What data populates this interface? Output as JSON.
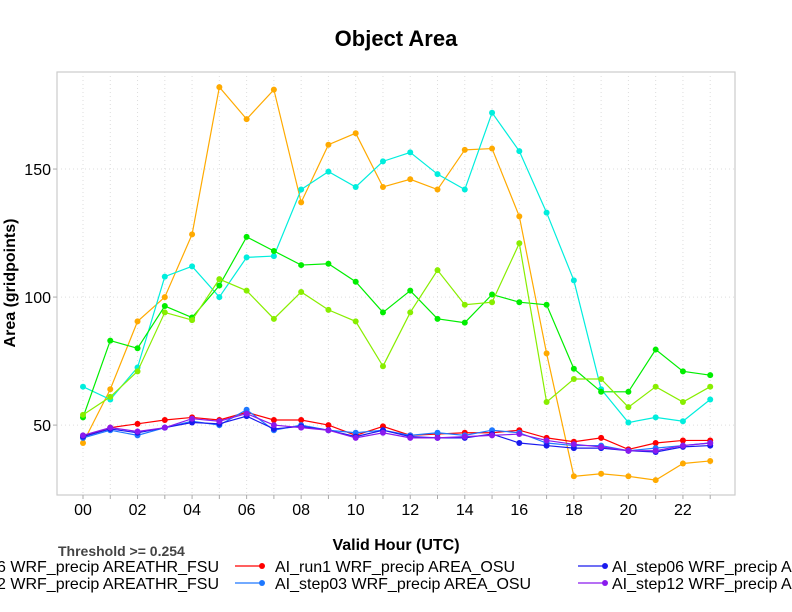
{
  "chart_data": {
    "type": "line",
    "title": "Object Area",
    "xlabel": "Valid Hour (UTC)",
    "ylabel": "Area (gridpoints)",
    "subtitle": "Threshold >= 0.254",
    "x": [
      0,
      1,
      2,
      3,
      4,
      5,
      6,
      7,
      8,
      9,
      10,
      11,
      12,
      13,
      14,
      15,
      16,
      17,
      18,
      19,
      20,
      21,
      22,
      23
    ],
    "xticks": [
      "00",
      "02",
      "04",
      "06",
      "08",
      "10",
      "12",
      "14",
      "16",
      "18",
      "20",
      "22"
    ],
    "xtick_values": [
      0,
      2,
      4,
      6,
      8,
      10,
      12,
      14,
      16,
      18,
      20,
      22
    ],
    "yticks": [
      "50",
      "100",
      "150"
    ],
    "ytick_values": [
      50,
      100,
      150
    ],
    "xlim": [
      -1,
      24
    ],
    "ylim": [
      22.7,
      187.9
    ],
    "grid": true,
    "legend_position": "bottom",
    "series": [
      {
        "name": "",
        "color": "#ffaa00",
        "values": [
          43,
          64,
          90.5,
          100,
          124.5,
          182,
          169.5,
          181,
          137,
          159.5,
          164,
          143,
          146,
          142,
          157.5,
          158,
          131.5,
          78,
          30,
          31,
          30,
          28.5,
          35,
          36
        ]
      },
      {
        "name": "",
        "color": "#00eedd",
        "values": [
          65,
          60,
          72.5,
          108,
          112,
          100,
          115.5,
          116,
          142,
          149,
          143,
          153,
          156.5,
          148,
          142,
          172,
          157,
          133,
          106.5,
          64,
          51,
          53,
          51.5,
          60
        ]
      },
      {
        "name": "",
        "color": "#00ee00",
        "values": [
          53,
          83,
          80,
          96.5,
          92,
          104.5,
          123.5,
          118,
          112.5,
          113,
          106,
          94,
          102.5,
          91.5,
          90,
          101,
          98,
          97,
          72,
          63,
          63,
          79.5,
          71,
          69.5
        ]
      },
      {
        "name": "",
        "color": "#88ee00",
        "values": [
          54,
          61,
          71,
          94,
          91,
          107,
          102.5,
          91.5,
          102,
          95,
          90.5,
          73,
          94,
          110.5,
          97,
          98,
          121,
          59,
          68,
          68,
          57,
          65,
          59,
          65
        ]
      },
      {
        "name": "AI_run1 WRF_precip AREA_OSU",
        "color": "#ff0000",
        "values": [
          45.5,
          49,
          50.5,
          52,
          53,
          52,
          55,
          52,
          52,
          50,
          46,
          49.5,
          46,
          46.5,
          47,
          47,
          48,
          45,
          43.5,
          45,
          40.5,
          43,
          44,
          44
        ]
      },
      {
        "name": "AI_step03 WRF_precip AREA_OSU",
        "color": "#1e78ff",
        "values": [
          45,
          48,
          46,
          49,
          51.5,
          50,
          56,
          48,
          50,
          48,
          47,
          48,
          46,
          47,
          46,
          48,
          47,
          43,
          42,
          42,
          40,
          41,
          42,
          43
        ]
      },
      {
        "name": "AI_step06 WRF_precip A",
        "color": "#1a1aee",
        "values": [
          45.5,
          48.5,
          47,
          49,
          51,
          50.5,
          53.5,
          48.5,
          49.5,
          48,
          45.5,
          48,
          45.5,
          45,
          45,
          46.5,
          43,
          42,
          41,
          41,
          40,
          39.5,
          41.5,
          42
        ]
      },
      {
        "name": "AI_step12 WRF_precip A",
        "color": "#8a1aee",
        "values": [
          46,
          49,
          47.5,
          49,
          52.5,
          51.5,
          54.5,
          50,
          49,
          48,
          45,
          47,
          45,
          45,
          45.5,
          46,
          46.5,
          44,
          42.5,
          41.5,
          40,
          40,
          42,
          43
        ]
      }
    ],
    "legend_partial": [
      "6 WRF_precip AREATHR_FSU",
      "2 WRF_precip AREATHR_FSU"
    ]
  }
}
